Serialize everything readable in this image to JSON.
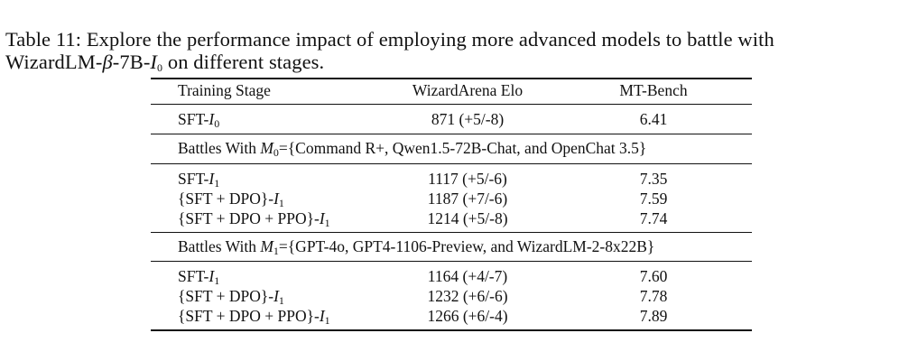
{
  "caption": {
    "line1": "Table 11: Explore the performance impact of employing more advanced models to battle with",
    "line2_prefix": "WizardLM-",
    "line2_beta": "β",
    "line2_mid": "-7B-",
    "line2_I": "I",
    "line2_sub": "0",
    "line2_suffix": " on different stages."
  },
  "table": {
    "headers": [
      "Training Stage",
      "WizardArena Elo",
      "MT-Bench"
    ],
    "baseline": {
      "stage_prefix": "SFT-",
      "stage_I": "I",
      "stage_sub": "0",
      "elo": "871 (+5/-8)",
      "mt": "6.41"
    },
    "groups": [
      {
        "title_prefix": "Battles With ",
        "title_M": "M",
        "title_sub": "0",
        "title_suffix": "={Command R+, Qwen1.5-72B-Chat, and OpenChat 3.5}",
        "rows": [
          {
            "stage_prefix": "SFT-",
            "stage_I": "I",
            "stage_sub": "1",
            "elo": "1117 (+5/-6)",
            "mt": "7.35"
          },
          {
            "stage_prefix": "{SFT + DPO}-",
            "stage_I": "I",
            "stage_sub": "1",
            "elo": "1187 (+7/-6)",
            "mt": "7.59"
          },
          {
            "stage_prefix": "{SFT + DPO + PPO}-",
            "stage_I": "I",
            "stage_sub": "1",
            "elo": "1214 (+5/-8)",
            "mt": "7.74"
          }
        ]
      },
      {
        "title_prefix": "Battles With ",
        "title_M": "M",
        "title_sub": "1",
        "title_suffix": "={GPT-4o, GPT4-1106-Preview, and WizardLM-2-8x22B}",
        "rows": [
          {
            "stage_prefix": "SFT-",
            "stage_I": "I",
            "stage_sub": "1",
            "elo": "1164 (+4/-7)",
            "mt": "7.60"
          },
          {
            "stage_prefix": "{SFT + DPO}-",
            "stage_I": "I",
            "stage_sub": "1",
            "elo": "1232 (+6/-6)",
            "mt": "7.78"
          },
          {
            "stage_prefix": "{SFT + DPO + PPO}-",
            "stage_I": "I",
            "stage_sub": "1",
            "elo": "1266 (+6/-4)",
            "mt": "7.89"
          }
        ]
      }
    ]
  }
}
